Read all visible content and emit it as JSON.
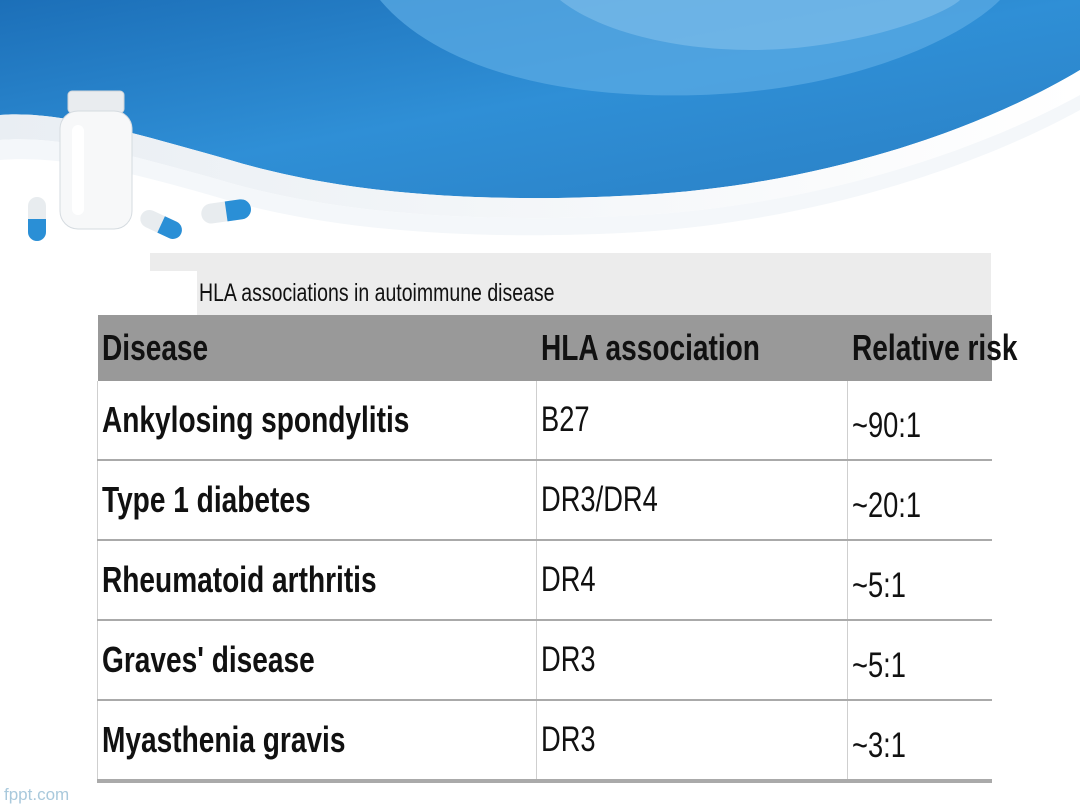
{
  "slide": {
    "caption": "HLA associations in autoimmune disease",
    "footer": "fppt.com"
  },
  "table": {
    "headers": [
      "Disease",
      "HLA association",
      "Relative risk"
    ],
    "rows": [
      {
        "disease": "Ankylosing spondylitis",
        "hla": "B27",
        "risk": "~90:1"
      },
      {
        "disease": "Type 1 diabetes",
        "hla": "DR3/DR4",
        "risk": "~20:1"
      },
      {
        "disease": "Rheumatoid arthritis",
        "hla": "DR4",
        "risk": "~5:1"
      },
      {
        "disease": "Graves' disease",
        "hla": "DR3",
        "risk": "~5:1"
      },
      {
        "disease": "Myasthenia gravis",
        "hla": "DR3",
        "risk": "~3:1"
      }
    ]
  },
  "colors": {
    "header_blue": "#2a86cc",
    "header_light_blue": "#6ab8e8",
    "table_header_gray": "#999999"
  }
}
